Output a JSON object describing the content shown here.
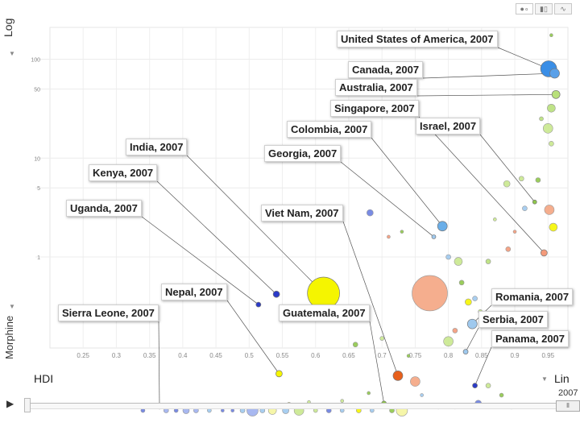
{
  "toolbar": {
    "icons": [
      "bubble-chart-icon",
      "bar-chart-icon",
      "line-chart-icon"
    ]
  },
  "controls": {
    "y_scale": "Log",
    "x_scale": "Lin",
    "y_indicator": "Morphine",
    "x_indicator": "HDI",
    "year": "2007",
    "play_icon": "▶",
    "dropdown_icon": "▼"
  },
  "chart_data": {
    "type": "scatter",
    "title": "",
    "xlabel": "HDI",
    "ylabel": "Morphine",
    "xscale": "linear",
    "yscale": "log",
    "xlim": [
      0.2,
      0.98
    ],
    "ylim": [
      0.12,
      210
    ],
    "x_ticks": [
      0.25,
      0.3,
      0.35,
      0.4,
      0.45,
      0.5,
      0.55,
      0.6,
      0.65,
      0.7,
      0.75,
      0.8,
      0.85,
      0.9,
      0.95
    ],
    "x_tick_labels": [
      "0.25",
      "0.3",
      "0.35",
      "0.4",
      "0.45",
      "0.5",
      "0.55",
      "0.6",
      "0.65",
      "0.7",
      "0.75",
      "0.8",
      "0.85",
      "0.9",
      "0.95"
    ],
    "y_ticks": [
      100,
      50,
      10,
      5,
      1
    ],
    "y_tick_labels": [
      "100",
      "50",
      "10",
      "5",
      "1"
    ],
    "grid": true,
    "year": "2007",
    "labeled_points": [
      {
        "label": "United States of America, 2007",
        "x": 0.951,
        "y": 80,
        "size": 10,
        "color": "#3a8ee6"
      },
      {
        "label": "Canada, 2007",
        "x": 0.96,
        "y": 72,
        "size": 6,
        "color": "#5aa0e8"
      },
      {
        "label": "Australia, 2007",
        "x": 0.962,
        "y": 44,
        "size": 5,
        "color": "#b8e07a"
      },
      {
        "label": "Singapore, 2007",
        "x": 0.944,
        "y": 1.1,
        "size": 4,
        "color": "#f49a7a"
      },
      {
        "label": "Israel, 2007",
        "x": 0.93,
        "y": 3.6,
        "size": 2.5,
        "color": "#8fc84a"
      },
      {
        "label": "Colombia, 2007",
        "x": 0.791,
        "y": 2.05,
        "size": 6,
        "color": "#6aaee8"
      },
      {
        "label": "Georgia, 2007",
        "x": 0.778,
        "y": 1.6,
        "size": 2.5,
        "color": "#9fc9ee"
      },
      {
        "label": "India, 2007",
        "x": 0.612,
        "y": 0.43,
        "size": 20,
        "color": "#f5f500"
      },
      {
        "label": "Kenya, 2007",
        "x": 0.541,
        "y": 0.42,
        "size": 4,
        "color": "#2a3ac8"
      },
      {
        "label": "Uganda, 2007",
        "x": 0.514,
        "y": 0.33,
        "size": 3,
        "color": "#2a3ac8"
      },
      {
        "label": "Viet Nam, 2007",
        "x": 0.724,
        "y": 0.063,
        "size": 6,
        "color": "#e8601c"
      },
      {
        "label": "Nepal, 2007",
        "x": 0.545,
        "y": 0.066,
        "size": 4,
        "color": "#f5f500"
      },
      {
        "label": "Guatemala, 2007",
        "x": 0.703,
        "y": 0.033,
        "size": 3,
        "color": "#8fc84a"
      },
      {
        "label": "Sierra Leone, 2007",
        "x": 0.365,
        "y": 0.03,
        "size": 2,
        "color": "#2a3ac8"
      },
      {
        "label": "Romania, 2007",
        "x": 0.836,
        "y": 0.21,
        "size": 6,
        "color": "#9fc9ee"
      },
      {
        "label": "Serbia, 2007",
        "x": 0.826,
        "y": 0.11,
        "size": 3,
        "color": "#9fc9ee"
      },
      {
        "label": "Panama, 2007",
        "x": 0.84,
        "y": 0.05,
        "size": 3,
        "color": "#2a3ac8"
      }
    ],
    "other_points": [
      {
        "x": 0.772,
        "y": 0.43,
        "size": 22,
        "color": "#f4a582"
      },
      {
        "x": 0.682,
        "y": 2.8,
        "size": 4,
        "color": "#6a7ee0"
      },
      {
        "x": 0.955,
        "y": 175,
        "size": 2,
        "color": "#8fc84a"
      },
      {
        "x": 0.955,
        "y": 32,
        "size": 5,
        "color": "#b8e07a"
      },
      {
        "x": 0.95,
        "y": 20,
        "size": 6,
        "color": "#c9e88e"
      },
      {
        "x": 0.94,
        "y": 25,
        "size": 2.5,
        "color": "#b8e07a"
      },
      {
        "x": 0.955,
        "y": 14,
        "size": 3,
        "color": "#c9e88e"
      },
      {
        "x": 0.952,
        "y": 3.0,
        "size": 6,
        "color": "#f4a582"
      },
      {
        "x": 0.958,
        "y": 2.0,
        "size": 5,
        "color": "#f5f500"
      },
      {
        "x": 0.91,
        "y": 6.2,
        "size": 3,
        "color": "#c9e88e"
      },
      {
        "x": 0.935,
        "y": 6.0,
        "size": 3,
        "color": "#8fc84a"
      },
      {
        "x": 0.888,
        "y": 5.5,
        "size": 4,
        "color": "#c9e88e"
      },
      {
        "x": 0.915,
        "y": 3.1,
        "size": 3,
        "color": "#9fc9ee"
      },
      {
        "x": 0.9,
        "y": 1.8,
        "size": 2,
        "color": "#f49a7a"
      },
      {
        "x": 0.89,
        "y": 1.2,
        "size": 3,
        "color": "#f49a7a"
      },
      {
        "x": 0.86,
        "y": 0.9,
        "size": 3,
        "color": "#b8e07a"
      },
      {
        "x": 0.87,
        "y": 2.4,
        "size": 2,
        "color": "#c9e88e"
      },
      {
        "x": 0.8,
        "y": 1.0,
        "size": 3,
        "color": "#9fc9ee"
      },
      {
        "x": 0.815,
        "y": 0.9,
        "size": 5,
        "color": "#c9e88e"
      },
      {
        "x": 0.83,
        "y": 0.35,
        "size": 4,
        "color": "#f5f500"
      },
      {
        "x": 0.82,
        "y": 0.55,
        "size": 3,
        "color": "#8fc84a"
      },
      {
        "x": 0.84,
        "y": 0.38,
        "size": 3,
        "color": "#9fc9ee"
      },
      {
        "x": 0.848,
        "y": 0.28,
        "size": 2.5,
        "color": "#c9e88e"
      },
      {
        "x": 0.8,
        "y": 0.14,
        "size": 6,
        "color": "#c9e88e"
      },
      {
        "x": 0.81,
        "y": 0.18,
        "size": 3,
        "color": "#f49a7a"
      },
      {
        "x": 0.75,
        "y": 0.055,
        "size": 6,
        "color": "#f4a582"
      },
      {
        "x": 0.76,
        "y": 0.04,
        "size": 2,
        "color": "#9fc9ee"
      },
      {
        "x": 0.74,
        "y": 0.1,
        "size": 2,
        "color": "#8fc84a"
      },
      {
        "x": 0.7,
        "y": 0.15,
        "size": 2.5,
        "color": "#c9e88e"
      },
      {
        "x": 0.66,
        "y": 0.13,
        "size": 3,
        "color": "#8fc84a"
      },
      {
        "x": 0.65,
        "y": 0.25,
        "size": 3,
        "color": "#f49a7a"
      },
      {
        "x": 0.71,
        "y": 1.6,
        "size": 2,
        "color": "#f49a7a"
      },
      {
        "x": 0.73,
        "y": 1.8,
        "size": 2,
        "color": "#8fc84a"
      },
      {
        "x": 0.845,
        "y": 0.033,
        "size": 4,
        "color": "#6a7ee0"
      },
      {
        "x": 0.86,
        "y": 0.05,
        "size": 3,
        "color": "#c9e88e"
      },
      {
        "x": 0.73,
        "y": 0.028,
        "size": 7,
        "color": "#f5f5a0"
      },
      {
        "x": 0.715,
        "y": 0.028,
        "size": 3,
        "color": "#8fc84a"
      },
      {
        "x": 0.685,
        "y": 0.028,
        "size": 2.5,
        "color": "#9fc9ee"
      },
      {
        "x": 0.665,
        "y": 0.028,
        "size": 3,
        "color": "#f5f500"
      },
      {
        "x": 0.64,
        "y": 0.028,
        "size": 2.5,
        "color": "#9fc9ee"
      },
      {
        "x": 0.62,
        "y": 0.028,
        "size": 3,
        "color": "#6a7ee0"
      },
      {
        "x": 0.6,
        "y": 0.028,
        "size": 2.5,
        "color": "#c9e88e"
      },
      {
        "x": 0.575,
        "y": 0.028,
        "size": 6,
        "color": "#c9e88e"
      },
      {
        "x": 0.555,
        "y": 0.028,
        "size": 4,
        "color": "#9fc9ee"
      },
      {
        "x": 0.535,
        "y": 0.028,
        "size": 5,
        "color": "#f5f5a0"
      },
      {
        "x": 0.52,
        "y": 0.028,
        "size": 3,
        "color": "#9fc9ee"
      },
      {
        "x": 0.505,
        "y": 0.028,
        "size": 7,
        "color": "#9fb0ee"
      },
      {
        "x": 0.49,
        "y": 0.028,
        "size": 3,
        "color": "#9fc9ee"
      },
      {
        "x": 0.475,
        "y": 0.028,
        "size": 2,
        "color": "#6a7ee0"
      },
      {
        "x": 0.46,
        "y": 0.028,
        "size": 2,
        "color": "#6a7ee0"
      },
      {
        "x": 0.44,
        "y": 0.028,
        "size": 2.5,
        "color": "#9fc9ee"
      },
      {
        "x": 0.42,
        "y": 0.028,
        "size": 3,
        "color": "#9fb0ee"
      },
      {
        "x": 0.405,
        "y": 0.028,
        "size": 4,
        "color": "#9fb0ee"
      },
      {
        "x": 0.39,
        "y": 0.028,
        "size": 2.5,
        "color": "#6a7ee0"
      },
      {
        "x": 0.375,
        "y": 0.028,
        "size": 3,
        "color": "#9fb0ee"
      },
      {
        "x": 0.34,
        "y": 0.028,
        "size": 2.5,
        "color": "#6a7ee0"
      },
      {
        "x": 0.56,
        "y": 0.032,
        "size": 3,
        "color": "#f5f500"
      },
      {
        "x": 0.59,
        "y": 0.034,
        "size": 2,
        "color": "#c9e88e"
      },
      {
        "x": 0.64,
        "y": 0.035,
        "size": 2,
        "color": "#c9e88e"
      },
      {
        "x": 0.68,
        "y": 0.042,
        "size": 2,
        "color": "#8fc84a"
      },
      {
        "x": 0.88,
        "y": 0.04,
        "size": 2.5,
        "color": "#8fc84a"
      },
      {
        "x": 0.895,
        "y": 0.03,
        "size": 2,
        "color": "#f49a7a"
      },
      {
        "x": 0.81,
        "y": 0.03,
        "size": 2,
        "color": "#b8e07a"
      },
      {
        "x": 0.785,
        "y": 0.03,
        "size": 2,
        "color": "#9fc9ee"
      }
    ]
  }
}
